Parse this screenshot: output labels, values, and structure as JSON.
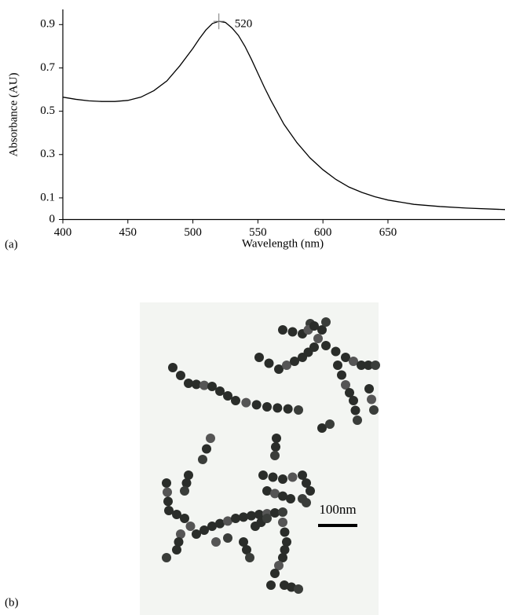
{
  "chart_data": {
    "type": "line",
    "panel_label": "(a)",
    "x_label": "Wavelength (nm)",
    "y_label": "Absorbance (AU)",
    "x": [
      400,
      410,
      420,
      430,
      440,
      450,
      460,
      470,
      480,
      490,
      500,
      505,
      510,
      515,
      520,
      525,
      530,
      535,
      540,
      545,
      550,
      555,
      560,
      570,
      580,
      590,
      600,
      610,
      620,
      630,
      640,
      650,
      670,
      690,
      710,
      740
    ],
    "values": [
      0.565,
      0.555,
      0.548,
      0.545,
      0.545,
      0.55,
      0.565,
      0.595,
      0.64,
      0.71,
      0.79,
      0.835,
      0.875,
      0.905,
      0.915,
      0.91,
      0.885,
      0.85,
      0.8,
      0.74,
      0.675,
      0.61,
      0.55,
      0.44,
      0.355,
      0.285,
      0.23,
      0.185,
      0.15,
      0.125,
      0.105,
      0.09,
      0.07,
      0.06,
      0.053,
      0.046
    ],
    "color": "#000000",
    "xlim": [
      400,
      740
    ],
    "xticks": [
      400,
      450,
      500,
      550,
      600,
      650
    ],
    "ylim": [
      0,
      0.97
    ],
    "yticks": [
      0,
      0.1,
      0.3,
      0.5,
      0.7,
      0.9
    ],
    "annotations": [
      {
        "text": "520",
        "x": 520,
        "y": 0.915
      }
    ]
  },
  "figure_b": {
    "panel_label": "(b)",
    "scale_bar": "100nm"
  }
}
